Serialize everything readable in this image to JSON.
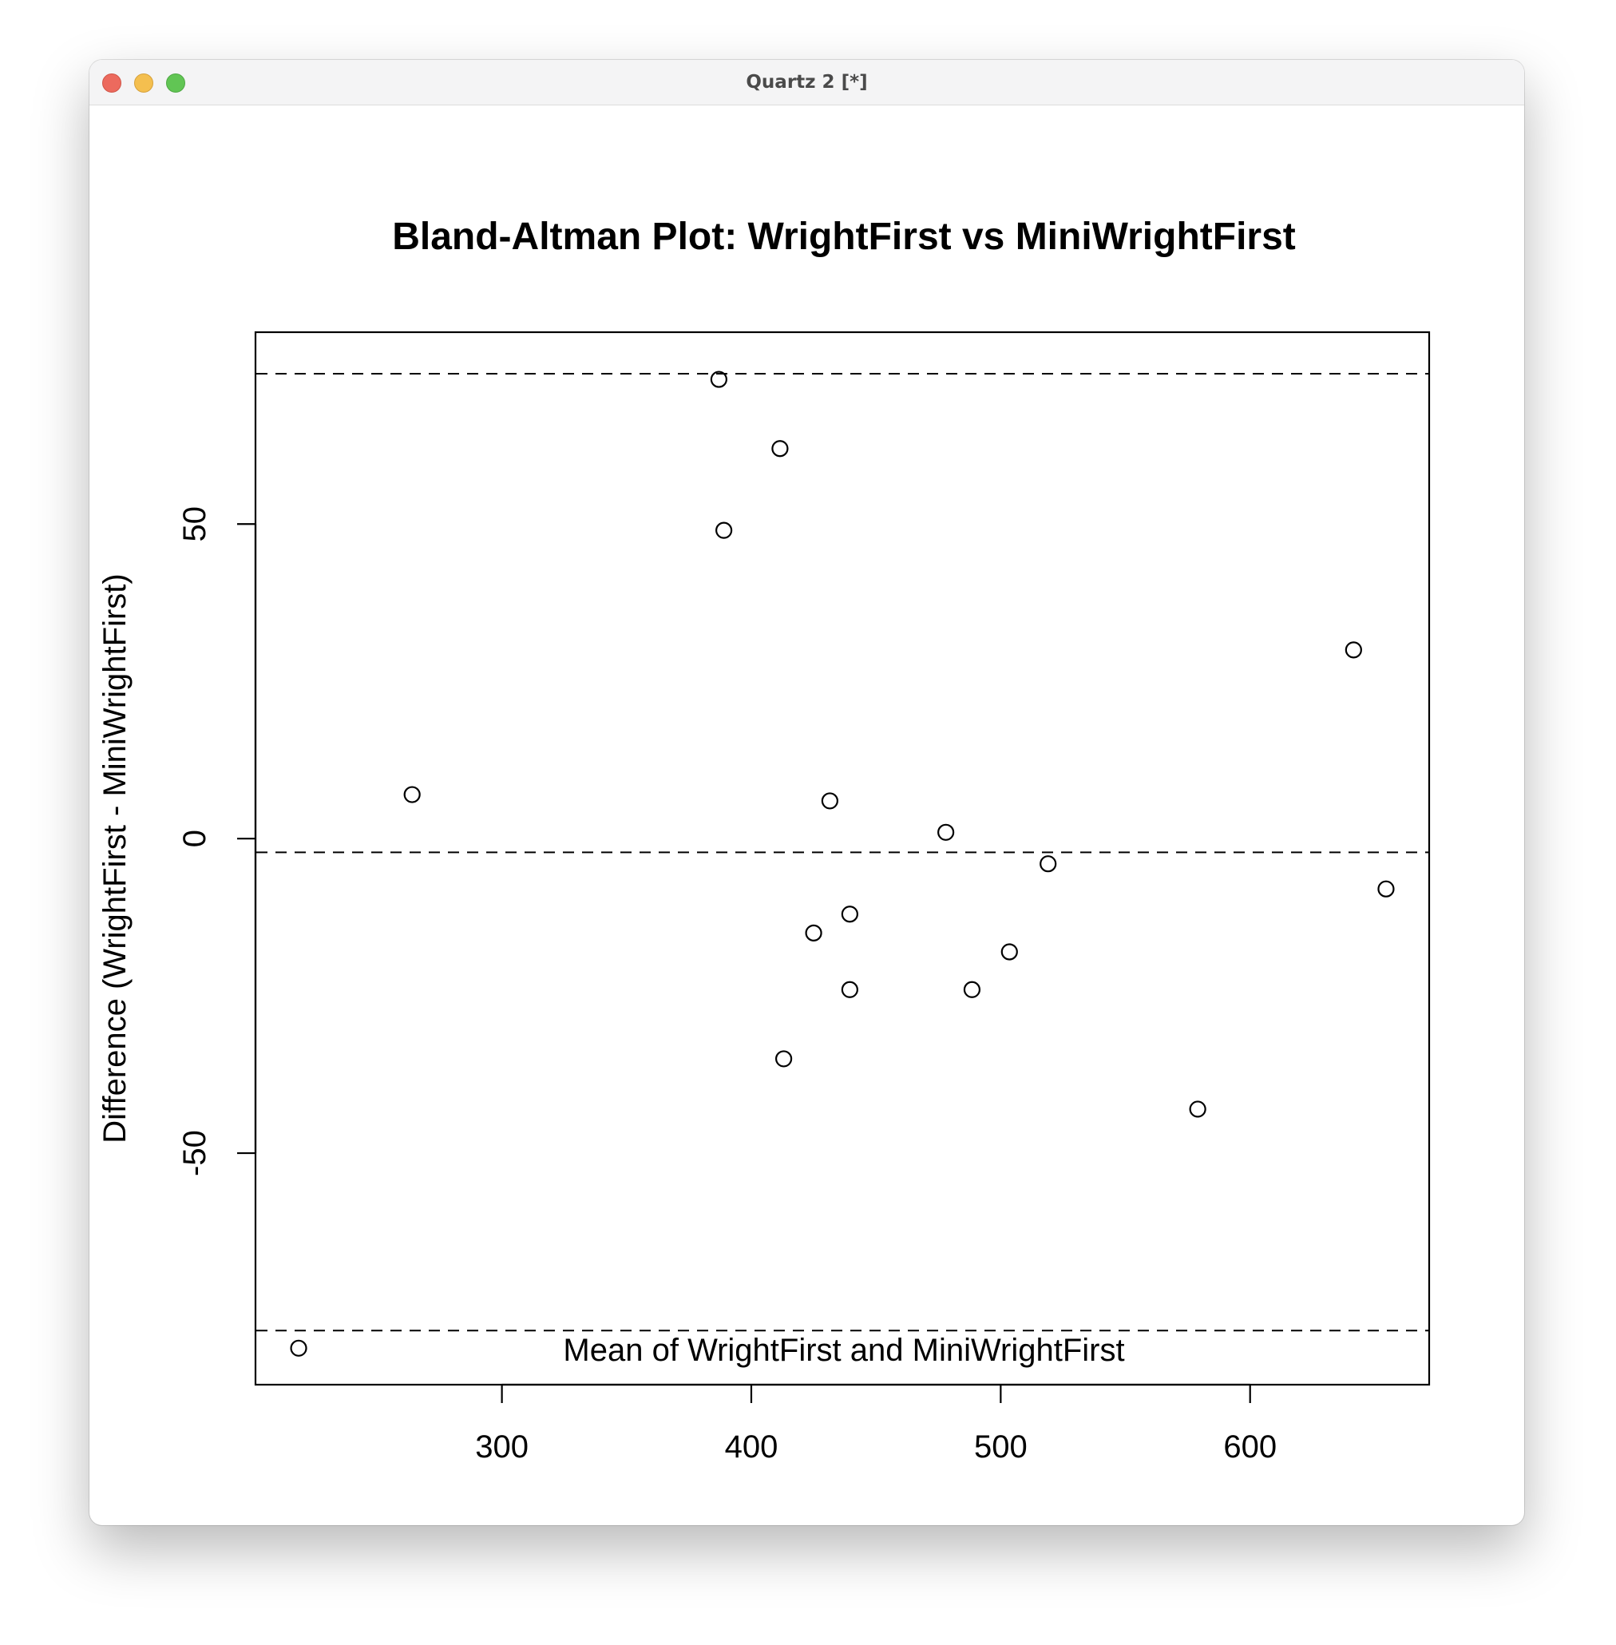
{
  "window": {
    "title": "Quartz 2 [*]",
    "controls": [
      "close",
      "minimize",
      "zoom"
    ]
  },
  "chart_data": {
    "type": "scatter",
    "title": "Bland-Altman Plot: WrightFirst vs MiniWrightFirst",
    "xlabel": "Mean of WrightFirst and MiniWrightFirst",
    "ylabel": "Difference (WrightFirst - MiniWrightFirst)",
    "xlim": [
      201.2,
      671.8
    ],
    "ylim": [
      -86.8,
      80.5
    ],
    "xticks": [
      300,
      400,
      500,
      600
    ],
    "yticks": [
      -50,
      0,
      50
    ],
    "grid": false,
    "legend": "none",
    "marker": "open-circle",
    "points": [
      {
        "x": 218.5,
        "y": -81
      },
      {
        "x": 264,
        "y": 7
      },
      {
        "x": 387,
        "y": 73
      },
      {
        "x": 389,
        "y": 49
      },
      {
        "x": 411.5,
        "y": 62
      },
      {
        "x": 413,
        "y": -35
      },
      {
        "x": 425,
        "y": -15
      },
      {
        "x": 431.5,
        "y": 6
      },
      {
        "x": 439.5,
        "y": -12
      },
      {
        "x": 439.5,
        "y": -24
      },
      {
        "x": 478,
        "y": 1
      },
      {
        "x": 488.5,
        "y": -24
      },
      {
        "x": 503.5,
        "y": -18
      },
      {
        "x": 519,
        "y": -4
      },
      {
        "x": 579,
        "y": -43
      },
      {
        "x": 641.5,
        "y": 30
      },
      {
        "x": 654.5,
        "y": -8
      }
    ],
    "reference_lines": [
      {
        "label": "mean difference",
        "y": -2.18,
        "style": "dashed"
      },
      {
        "label": "upper limit of agreement",
        "y": 73.9,
        "style": "dashed"
      },
      {
        "label": "lower limit of agreement",
        "y": -78.2,
        "style": "dashed"
      }
    ]
  }
}
